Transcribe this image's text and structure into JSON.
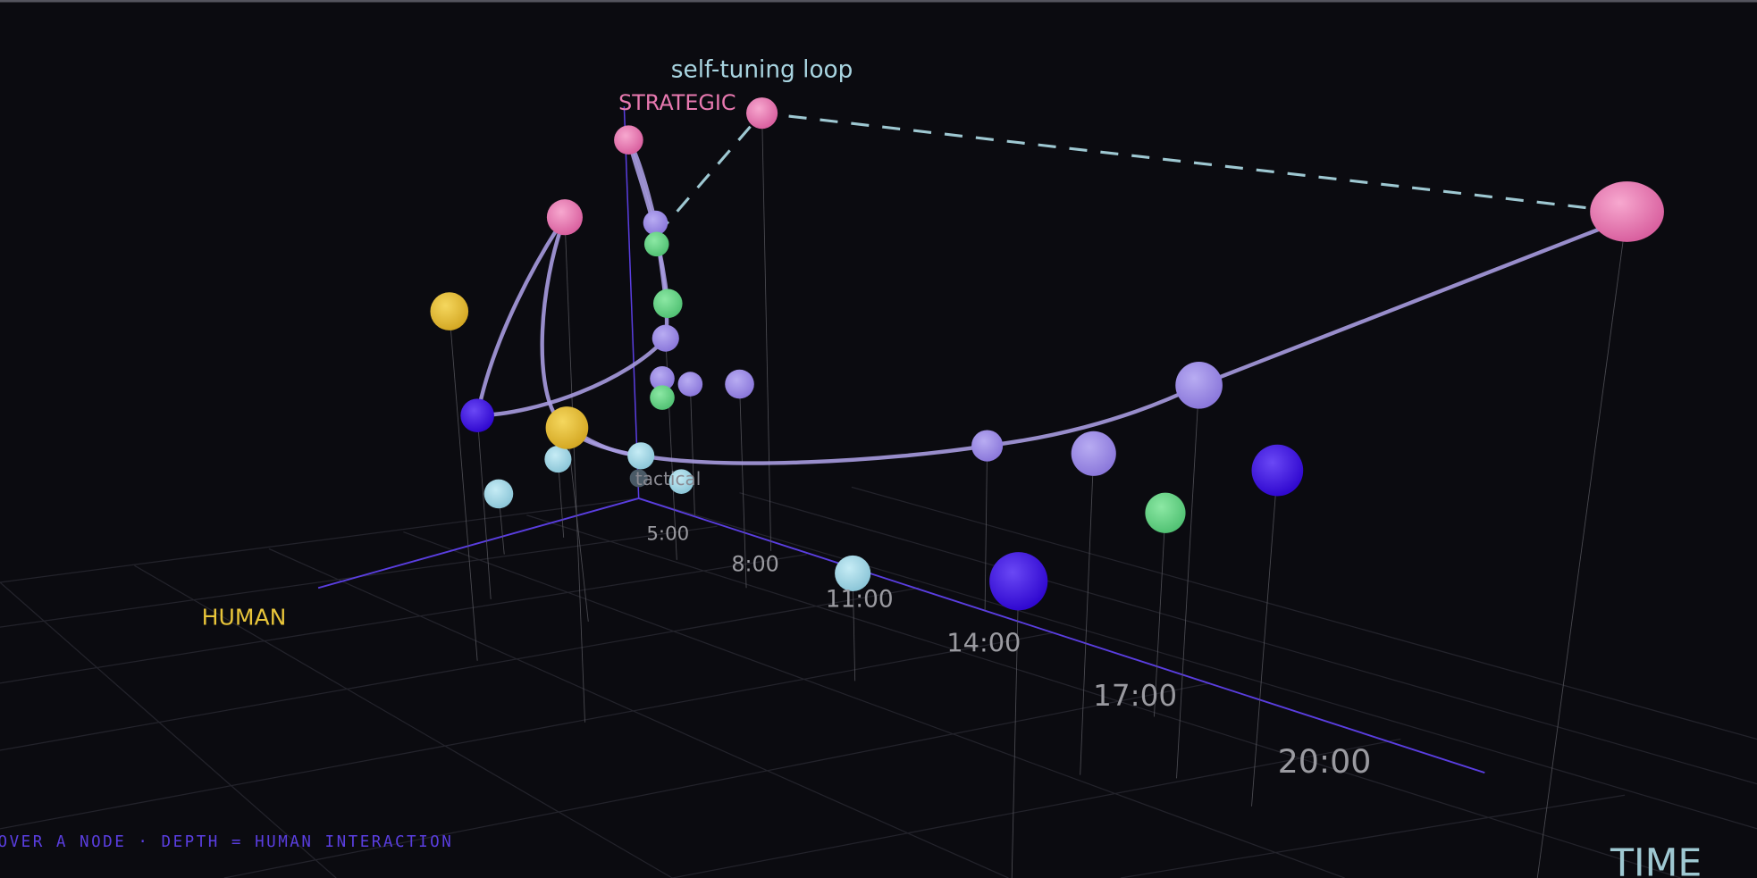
{
  "labels": {
    "loop": "self-tuning loop",
    "strategic": "STRATEGIC",
    "tactical": "tactical",
    "human": "HUMAN",
    "time": "TIME"
  },
  "time_ticks": [
    "5:00",
    "8:00",
    "11:00",
    "14:00",
    "17:00",
    "20:00"
  ],
  "footer": "OVER A NODE · DEPTH = HUMAN INTERACTION"
}
